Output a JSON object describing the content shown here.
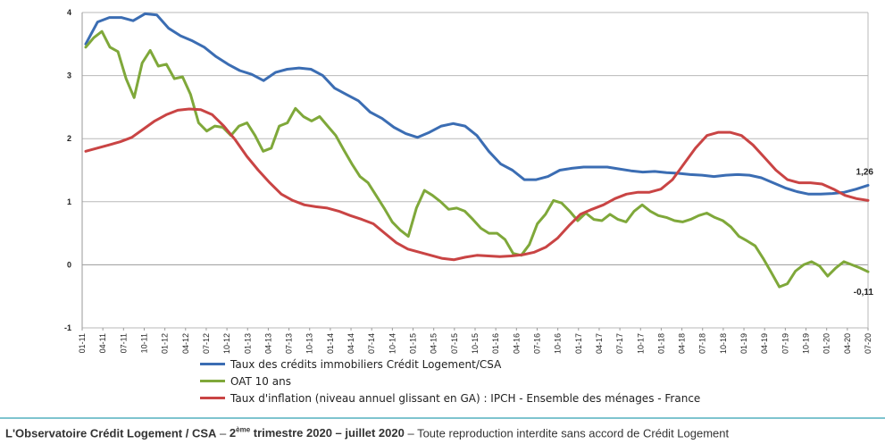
{
  "chart_data": {
    "type": "line",
    "ylim": [
      -1,
      4
    ],
    "yticks": [
      "-1",
      "0",
      "1",
      "2",
      "3",
      "4"
    ],
    "grid": true,
    "legend_position": "bottom",
    "x_labels": [
      "01-11",
      "04-11",
      "07-11",
      "10-11",
      "01-12",
      "04-12",
      "07-12",
      "10-12",
      "01-13",
      "04-13",
      "07-13",
      "10-13",
      "01-14",
      "04-14",
      "07-14",
      "10-14",
      "01-15",
      "04-15",
      "07-15",
      "10-15",
      "01-16",
      "04-16",
      "07-16",
      "10-16",
      "01-17",
      "04-17",
      "07-17",
      "10-17",
      "01-18",
      "04-18",
      "07-18",
      "10-18",
      "01-19",
      "04-19",
      "07-19",
      "10-19",
      "01-20",
      "04-20",
      "07-20"
    ],
    "series": [
      {
        "name": "Taux des crédits immobiliers Crédit Logement/CSA",
        "color": "#3b6db3",
        "end_label": "1,26",
        "values": [
          3.5,
          3.85,
          3.92,
          3.92,
          3.87,
          3.98,
          3.96,
          3.75,
          3.63,
          3.55,
          3.45,
          3.3,
          3.18,
          3.08,
          3.02,
          2.92,
          3.05,
          3.1,
          3.12,
          3.1,
          3.0,
          2.8,
          2.7,
          2.6,
          2.42,
          2.32,
          2.18,
          2.08,
          2.02,
          2.1,
          2.2,
          2.24,
          2.2,
          2.05,
          1.8,
          1.6,
          1.5,
          1.35,
          1.35,
          1.4,
          1.5,
          1.53,
          1.55,
          1.55,
          1.55,
          1.52,
          1.49,
          1.47,
          1.48,
          1.46,
          1.45,
          1.43,
          1.42,
          1.4,
          1.42,
          1.43,
          1.42,
          1.38,
          1.3,
          1.22,
          1.16,
          1.12,
          1.12,
          1.13,
          1.15,
          1.2,
          1.26
        ]
      },
      {
        "name": "OAT 10 ans",
        "color": "#7fa83a",
        "end_label": "-0,11",
        "values": [
          3.45,
          3.6,
          3.7,
          3.45,
          3.38,
          2.95,
          2.65,
          3.2,
          3.4,
          3.15,
          3.18,
          2.95,
          2.98,
          2.7,
          2.25,
          2.12,
          2.2,
          2.18,
          2.05,
          2.2,
          2.25,
          2.05,
          1.8,
          1.85,
          2.2,
          2.25,
          2.48,
          2.35,
          2.28,
          2.35,
          2.2,
          2.05,
          1.82,
          1.6,
          1.4,
          1.3,
          1.1,
          0.9,
          0.68,
          0.55,
          0.45,
          0.9,
          1.18,
          1.1,
          1.0,
          0.88,
          0.9,
          0.85,
          0.72,
          0.58,
          0.5,
          0.5,
          0.4,
          0.18,
          0.15,
          0.32,
          0.65,
          0.8,
          1.02,
          0.98,
          0.85,
          0.7,
          0.82,
          0.72,
          0.7,
          0.8,
          0.72,
          0.68,
          0.85,
          0.95,
          0.85,
          0.78,
          0.75,
          0.7,
          0.68,
          0.72,
          0.78,
          0.82,
          0.75,
          0.7,
          0.6,
          0.45,
          0.38,
          0.3,
          0.1,
          -0.12,
          -0.35,
          -0.3,
          -0.1,
          0.0,
          0.05,
          -0.02,
          -0.18,
          -0.05,
          0.05,
          0.0,
          -0.05,
          -0.11
        ]
      },
      {
        "name": "Taux d'inflation (niveau annuel glissant en GA) : IPCH - Ensemble des ménages - France",
        "color": "#c94444",
        "values": [
          1.8,
          1.85,
          1.9,
          1.95,
          2.02,
          2.15,
          2.28,
          2.38,
          2.45,
          2.47,
          2.46,
          2.38,
          2.2,
          1.98,
          1.72,
          1.5,
          1.3,
          1.12,
          1.02,
          0.95,
          0.92,
          0.9,
          0.85,
          0.78,
          0.72,
          0.65,
          0.5,
          0.35,
          0.25,
          0.2,
          0.15,
          0.1,
          0.08,
          0.12,
          0.15,
          0.14,
          0.13,
          0.14,
          0.16,
          0.2,
          0.28,
          0.42,
          0.62,
          0.8,
          0.88,
          0.95,
          1.05,
          1.12,
          1.15,
          1.15,
          1.2,
          1.35,
          1.6,
          1.85,
          2.05,
          2.1,
          2.1,
          2.05,
          1.9,
          1.7,
          1.5,
          1.35,
          1.3,
          1.3,
          1.28,
          1.2,
          1.1,
          1.05,
          1.02
        ]
      }
    ]
  },
  "footer": {
    "org": "L'Observatoire Crédit Logement / CSA",
    "sep1": " – ",
    "period_pre": "2",
    "period_sup": "ème",
    "period_post": " trimestre 2020 – juillet 2020",
    "sep2": " – ",
    "notice": "Toute reproduction interdite sans accord de Crédit Logement"
  }
}
